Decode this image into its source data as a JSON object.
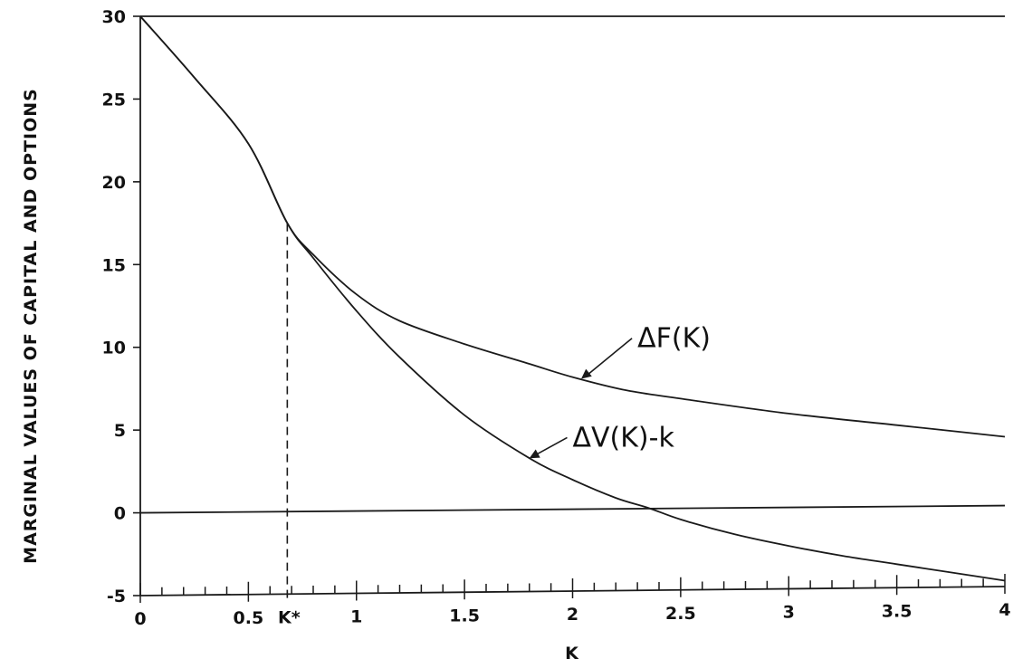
{
  "chart_data": {
    "type": "line",
    "title": "",
    "xlabel": "K",
    "ylabel": "MARGINAL VALUES OF CAPITAL AND OPTIONS",
    "xlim": [
      0,
      4
    ],
    "ylim": [
      -5,
      30
    ],
    "x_ticks": [
      {
        "value": 0,
        "label": "0"
      },
      {
        "value": 0.5,
        "label": "0.5"
      },
      {
        "value": 1,
        "label": "1"
      },
      {
        "value": 1.5,
        "label": "1.5"
      },
      {
        "value": 2,
        "label": "2"
      },
      {
        "value": 2.5,
        "label": "2.5"
      },
      {
        "value": 3,
        "label": "3"
      },
      {
        "value": 3.5,
        "label": "3.5"
      },
      {
        "value": 4,
        "label": "4"
      }
    ],
    "y_ticks": [
      {
        "value": -5,
        "label": "-5"
      },
      {
        "value": 0,
        "label": "0"
      },
      {
        "value": 5,
        "label": "5"
      },
      {
        "value": 10,
        "label": "10"
      },
      {
        "value": 15,
        "label": "15"
      },
      {
        "value": 20,
        "label": "20"
      },
      {
        "value": 25,
        "label": "25"
      },
      {
        "value": 30,
        "label": "30"
      }
    ],
    "minor_x_step": 0.1,
    "grid": false,
    "series": [
      {
        "name": "ΔF(K)",
        "x": [
          0,
          0.25,
          0.5,
          0.68,
          0.8,
          1.0,
          1.2,
          1.5,
          1.8,
          2.0,
          2.25,
          2.5,
          3.0,
          3.5,
          4.0
        ],
        "y": [
          30,
          26.3,
          22.3,
          17.5,
          15.6,
          13.2,
          11.6,
          10.2,
          9.0,
          8.2,
          7.4,
          6.9,
          6.0,
          5.3,
          4.6
        ]
      },
      {
        "name": "ΔV(K)-k",
        "x": [
          0,
          0.25,
          0.5,
          0.68,
          0.8,
          1.0,
          1.2,
          1.5,
          1.8,
          2.0,
          2.2,
          2.35,
          2.5,
          2.75,
          3.0,
          3.25,
          3.5,
          3.75,
          4.0
        ],
        "y": [
          30,
          26.3,
          22.3,
          17.5,
          15.4,
          12.2,
          9.4,
          5.9,
          3.3,
          2.0,
          0.9,
          0.3,
          -0.4,
          -1.3,
          -2.0,
          -2.6,
          -3.1,
          -3.6,
          -4.1
        ]
      }
    ],
    "horizontal_lines": [
      0
    ],
    "marker": {
      "x": 0.68,
      "y": 17.5,
      "label": "K*"
    },
    "annotations": [
      {
        "text": "ΔF(K)",
        "x": 2.3,
        "y": 10.0,
        "points_to": [
          2.04,
          8.1
        ]
      },
      {
        "text": "ΔV(K)-k",
        "x": 2.0,
        "y": 4.0,
        "points_to": [
          1.8,
          3.3
        ]
      }
    ]
  }
}
